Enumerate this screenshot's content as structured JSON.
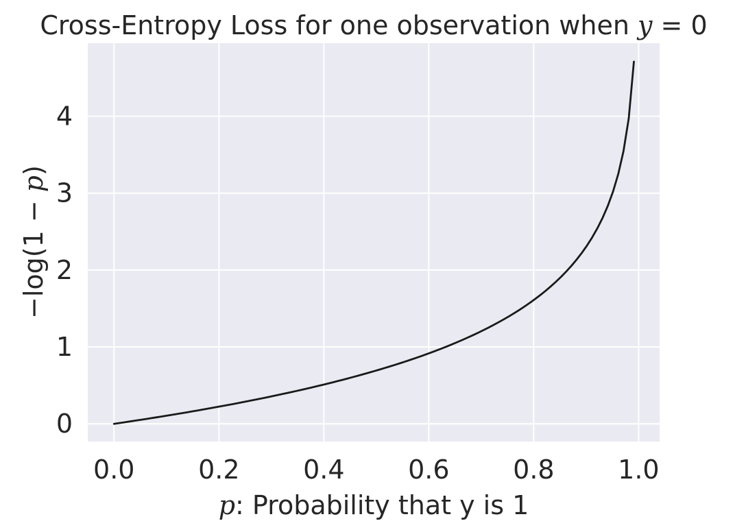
{
  "chart_data": {
    "type": "line",
    "title": {
      "prefix": "Cross-Entropy Loss for one observation when ",
      "var": "y",
      "suffix": " = 0"
    },
    "xlabel": {
      "var": "p",
      "suffix": ": Probability that y is 1"
    },
    "ylabel": {
      "prefix": "−log(1 − ",
      "var": "p",
      "suffix": ")"
    },
    "xlim": [
      -0.05,
      1.04
    ],
    "ylim": [
      -0.23,
      4.95
    ],
    "xticks": [
      0.0,
      0.2,
      0.4,
      0.6,
      0.8,
      1.0
    ],
    "xtick_labels": [
      "0.0",
      "0.2",
      "0.4",
      "0.6",
      "0.8",
      "1.0"
    ],
    "yticks": [
      0,
      1,
      2,
      3,
      4
    ],
    "ytick_labels": [
      "0",
      "1",
      "2",
      "3",
      "4"
    ],
    "grid": true,
    "legend": "none",
    "series": [
      {
        "function": "-log(1-p)",
        "x_min": 0.0,
        "x_max": 0.991,
        "color": "#1a1a1a"
      }
    ],
    "colors": {
      "plot_background": "#eaeaf2",
      "grid": "#ffffff",
      "line": "#1a1a1a",
      "text": "#262626"
    }
  }
}
